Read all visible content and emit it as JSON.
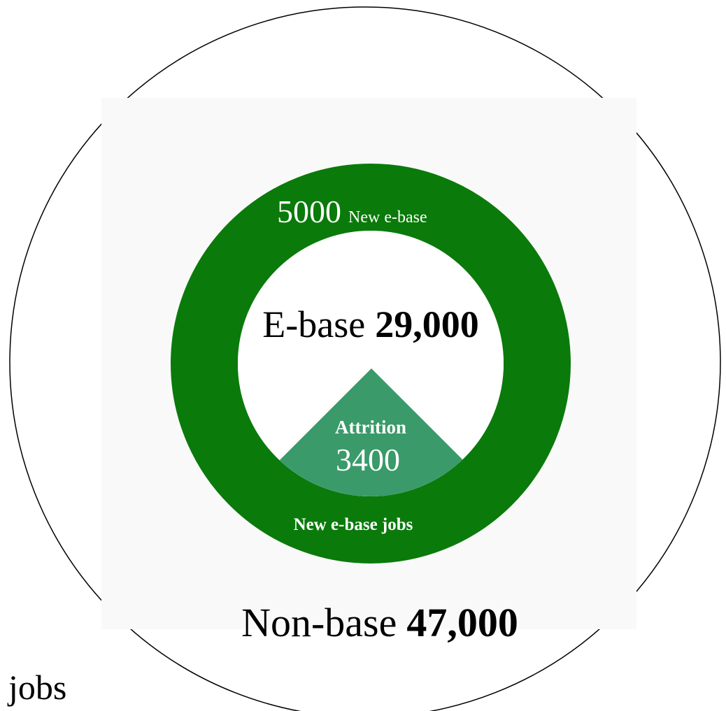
{
  "outer": {
    "label": "Non-base",
    "value": "47,000",
    "suffix": "jobs"
  },
  "ring": {
    "value": "5000",
    "label": "New e-base",
    "bottom_label": "New e-base jobs"
  },
  "inner": {
    "label": "E-base",
    "value": "29,000"
  },
  "attrition": {
    "label": "Attrition",
    "value": "3400"
  }
}
